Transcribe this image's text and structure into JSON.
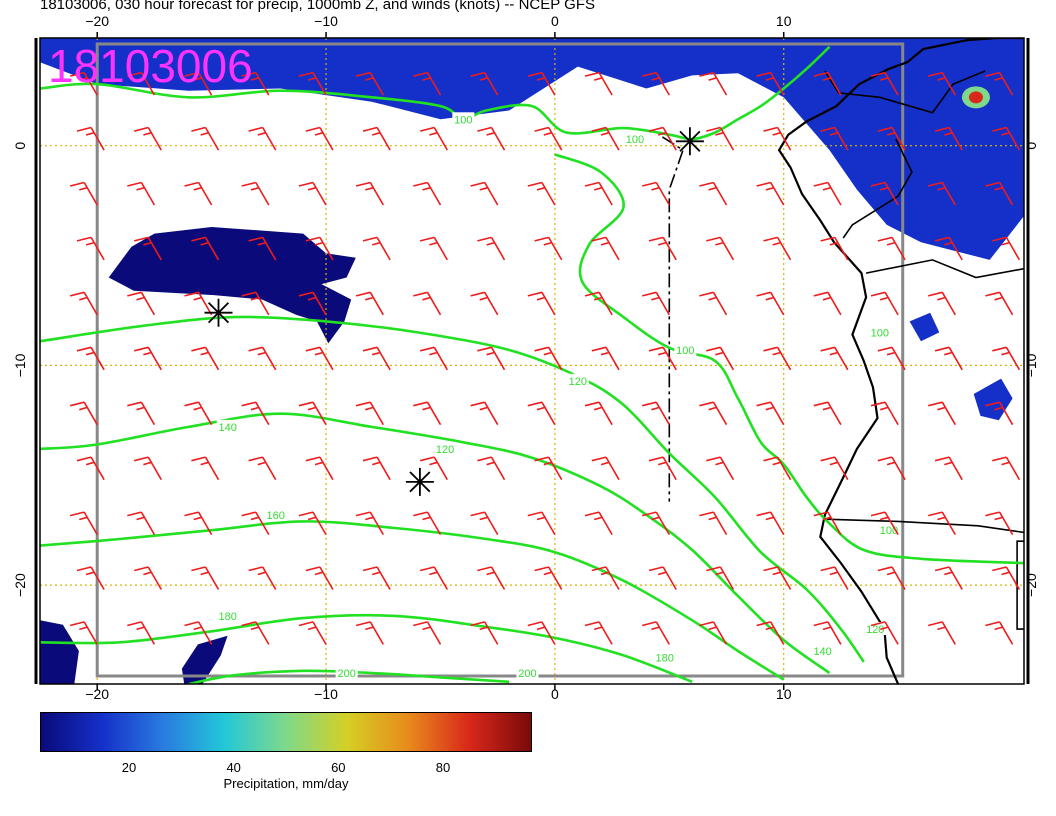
{
  "title": "18103006, 030 hour forecast for precip, 1000mb Z, and winds (knots) -- NCEP GFS",
  "stamp": "18103006",
  "map": {
    "lon_range": [
      -22.5,
      20.5
    ],
    "lat_range": [
      -24.5,
      4.9
    ],
    "x_tick_labels_top": [
      {
        "lon": -20,
        "label": "−20"
      },
      {
        "lon": -10,
        "label": "−10"
      },
      {
        "lon": 0,
        "label": "0"
      },
      {
        "lon": 10,
        "label": "10"
      }
    ],
    "x_tick_labels_bottom": [
      {
        "lon": -20,
        "label": "−20"
      },
      {
        "lon": -10,
        "label": "−10"
      },
      {
        "lon": 0,
        "label": "0"
      },
      {
        "lon": 10,
        "label": "10"
      }
    ],
    "y_tick_labels": [
      {
        "lat": 0,
        "label": "0"
      },
      {
        "lat": -10,
        "label": "−10"
      },
      {
        "lat": -20,
        "label": "−20"
      }
    ],
    "contours": [
      {
        "value": 100,
        "label": "100",
        "points": [
          [
            -22.5,
            2.6
          ],
          [
            -20,
            2.8
          ],
          [
            -16,
            2.2
          ],
          [
            -12,
            2.5
          ],
          [
            -8,
            2.2
          ],
          [
            -5,
            1.8
          ],
          [
            -4,
            1.2
          ],
          [
            -3,
            1.6
          ],
          [
            -1,
            1.8
          ],
          [
            0.5,
            0.6
          ],
          [
            3,
            0.8
          ],
          [
            5,
            0.5
          ],
          [
            6,
            0.3
          ],
          [
            7,
            0.6
          ],
          [
            8,
            1.2
          ],
          [
            9,
            1.8
          ],
          [
            10,
            2.6
          ],
          [
            11,
            3.5
          ],
          [
            12,
            4.5
          ]
        ]
      },
      {
        "value": 100,
        "label": "100",
        "points": [
          [
            0,
            -0.4
          ],
          [
            2,
            -1.2
          ],
          [
            3,
            -2.8
          ],
          [
            1.5,
            -4.5
          ],
          [
            1.2,
            -6.2
          ],
          [
            3,
            -7.8
          ],
          [
            5,
            -9.2
          ],
          [
            7,
            -9.8
          ],
          [
            8,
            -11.5
          ],
          [
            9,
            -13.5
          ],
          [
            10,
            -14.5
          ],
          [
            11,
            -16
          ],
          [
            12,
            -17.2
          ],
          [
            13.5,
            -18.4
          ],
          [
            16,
            -18.8
          ],
          [
            20.5,
            -19
          ]
        ]
      },
      {
        "value": 120,
        "label": "120",
        "points": [
          [
            -22.5,
            -8.9
          ],
          [
            -18,
            -8.2
          ],
          [
            -14,
            -7.8
          ],
          [
            -10,
            -8.0
          ],
          [
            -6,
            -8.5
          ],
          [
            -2,
            -9.3
          ],
          [
            1,
            -10.5
          ],
          [
            3,
            -11.8
          ],
          [
            5,
            -14
          ],
          [
            7,
            -16
          ],
          [
            9,
            -18.5
          ],
          [
            11,
            -20.2
          ],
          [
            12.5,
            -22
          ],
          [
            13.5,
            -23.5
          ]
        ]
      },
      {
        "value": 140,
        "label": "140",
        "points": [
          [
            -22.5,
            -13.8
          ],
          [
            -20,
            -13.6
          ],
          [
            -16,
            -12.8
          ],
          [
            -12,
            -12.2
          ],
          [
            -8,
            -12.8
          ],
          [
            -4,
            -13.5
          ],
          [
            -1,
            -14.2
          ],
          [
            2,
            -15.5
          ],
          [
            4,
            -16.8
          ],
          [
            6,
            -18.4
          ],
          [
            8,
            -20.5
          ],
          [
            10,
            -22.5
          ],
          [
            12,
            -24
          ]
        ]
      },
      {
        "value": 160,
        "label": "160",
        "points": [
          [
            -22.5,
            -18.2
          ],
          [
            -19,
            -17.9
          ],
          [
            -15,
            -17.5
          ],
          [
            -11,
            -17.1
          ],
          [
            -7,
            -17.4
          ],
          [
            -3,
            -17.9
          ],
          [
            0,
            -18.5
          ],
          [
            3,
            -19.8
          ],
          [
            6,
            -21.6
          ],
          [
            8,
            -23
          ],
          [
            10,
            -24.3
          ]
        ]
      },
      {
        "value": 180,
        "label": "180",
        "points": [
          [
            -22.5,
            -22.6
          ],
          [
            -19,
            -22.6
          ],
          [
            -15,
            -22.1
          ],
          [
            -11,
            -21.5
          ],
          [
            -7,
            -21.4
          ],
          [
            -3,
            -21.9
          ],
          [
            0,
            -22.4
          ],
          [
            3,
            -23.2
          ],
          [
            6,
            -24.4
          ]
        ]
      },
      {
        "value": 200,
        "label": "200",
        "points": [
          [
            -16,
            -24.5
          ],
          [
            -14,
            -24.1
          ],
          [
            -11,
            -23.9
          ],
          [
            -8,
            -24.0
          ],
          [
            -5,
            -24.2
          ],
          [
            -2,
            -24.4
          ]
        ]
      }
    ],
    "contour_label_positions": [
      {
        "label": "100",
        "lon": -4.0,
        "lat": 1.2
      },
      {
        "label": "100",
        "lon": 3.5,
        "lat": 0.3
      },
      {
        "label": "100",
        "lon": 5.7,
        "lat": -9.3
      },
      {
        "label": "120",
        "lon": 1.0,
        "lat": -10.7
      },
      {
        "label": "120",
        "lon": -4.8,
        "lat": -13.8
      },
      {
        "label": "140",
        "lon": -14.3,
        "lat": -12.8
      },
      {
        "label": "160",
        "lon": -12.2,
        "lat": -16.8
      },
      {
        "label": "180",
        "lon": -14.3,
        "lat": -21.4
      },
      {
        "label": "180",
        "lon": 4.8,
        "lat": -23.3
      },
      {
        "label": "200",
        "lon": -9.1,
        "lat": -24.0
      },
      {
        "label": "200",
        "lon": -1.2,
        "lat": -24.0
      },
      {
        "label": "140",
        "lon": 11.7,
        "lat": -23.0
      },
      {
        "label": "120",
        "lon": 14.0,
        "lat": -22.0
      },
      {
        "label": "100",
        "lon": 14.6,
        "lat": -17.5
      },
      {
        "label": "100",
        "lon": 14.2,
        "lat": -8.5
      }
    ],
    "low_markers": [
      [
        5.9,
        0.2
      ],
      [
        -14.7,
        -7.6
      ],
      [
        -5.9,
        -15.3
      ]
    ],
    "precip_areas": [
      {
        "name": "itcz-band",
        "level": 12,
        "points": [
          [
            -22.5,
            3.8
          ],
          [
            -22.5,
            4.9
          ],
          [
            20.5,
            4.9
          ],
          [
            20.5,
            -3.2
          ],
          [
            19,
            -5.2
          ],
          [
            16,
            -4.4
          ],
          [
            14.5,
            -3.6
          ],
          [
            13.2,
            -2
          ],
          [
            12,
            -0.2
          ],
          [
            10,
            2.2
          ],
          [
            8,
            3.3
          ],
          [
            6,
            3.2
          ],
          [
            4,
            2.6
          ],
          [
            1,
            3.6
          ],
          [
            -2,
            1.6
          ],
          [
            -5,
            1.2
          ],
          [
            -8,
            2.0
          ],
          [
            -12,
            2.6
          ],
          [
            -16,
            2.5
          ],
          [
            -20,
            2.8
          ]
        ]
      },
      {
        "name": "ocean-patch",
        "level": 8,
        "points": [
          [
            -19.5,
            -6.0
          ],
          [
            -18.5,
            -4.6
          ],
          [
            -17.5,
            -4.0
          ],
          [
            -15,
            -3.7
          ],
          [
            -11,
            -4.0
          ],
          [
            -10,
            -4.9
          ],
          [
            -8.7,
            -5.1
          ],
          [
            -9.1,
            -6.0
          ],
          [
            -10.2,
            -6.3
          ],
          [
            -8.9,
            -7.0
          ],
          [
            -9.2,
            -8.0
          ],
          [
            -9.9,
            -9.0
          ],
          [
            -10.4,
            -8.0
          ],
          [
            -11.3,
            -7.7
          ],
          [
            -12.8,
            -7.0
          ],
          [
            -14.9,
            -6.8
          ],
          [
            -18.4,
            -6.6
          ]
        ]
      },
      {
        "name": "southwest-patch",
        "level": 8,
        "points": [
          [
            -22.5,
            -21.6
          ],
          [
            -21.5,
            -21.8
          ],
          [
            -20.8,
            -23.0
          ],
          [
            -21.0,
            -24.5
          ],
          [
            -22.5,
            -24.5
          ]
        ]
      },
      {
        "name": "lower-patch",
        "level": 8,
        "points": [
          [
            -16.3,
            -23.8
          ],
          [
            -15.6,
            -22.7
          ],
          [
            -14.3,
            -22.3
          ],
          [
            -14.6,
            -23.2
          ],
          [
            -15.4,
            -24.5
          ],
          [
            -16.2,
            -24.5
          ]
        ]
      },
      {
        "name": "coastal-patch",
        "level": 10,
        "points": [
          [
            15.5,
            -8.0
          ],
          [
            16.4,
            -7.6
          ],
          [
            16.8,
            -8.5
          ],
          [
            16.0,
            -8.9
          ]
        ]
      },
      {
        "name": "inland-patch",
        "level": 10,
        "points": [
          [
            18.3,
            -11.3
          ],
          [
            19.5,
            -10.6
          ],
          [
            20.0,
            -11.5
          ],
          [
            19.4,
            -12.5
          ],
          [
            18.6,
            -12.3
          ]
        ]
      }
    ],
    "precip_max": {
      "lon": 18.4,
      "lat": 2.2,
      "level": 80
    },
    "coastline": [
      [
        20.5,
        4.9
      ],
      [
        19.3,
        4.9
      ],
      [
        18,
        4.8
      ],
      [
        16.1,
        4.4
      ],
      [
        15.4,
        3.8
      ],
      [
        14.6,
        3.5
      ],
      [
        13.3,
        2.8
      ],
      [
        12.3,
        1.8
      ],
      [
        11.0,
        1.1
      ],
      [
        10.2,
        0.5
      ],
      [
        9.8,
        -0.2
      ],
      [
        10.3,
        -1.0
      ],
      [
        10.8,
        -2.2
      ],
      [
        11.6,
        -3.4
      ],
      [
        12.2,
        -4.4
      ],
      [
        13.4,
        -5.8
      ],
      [
        13.6,
        -6.9
      ],
      [
        13.0,
        -8.6
      ],
      [
        13.5,
        -9.8
      ],
      [
        13.9,
        -11.0
      ],
      [
        14.1,
        -12.4
      ],
      [
        13.2,
        -13.8
      ],
      [
        12.6,
        -15.1
      ],
      [
        11.8,
        -16.8
      ],
      [
        11.6,
        -17.8
      ],
      [
        12.5,
        -19.0
      ],
      [
        13.4,
        -20.3
      ],
      [
        14.4,
        -22.0
      ],
      [
        14.5,
        -23.3
      ],
      [
        15.0,
        -24.5
      ]
    ],
    "borders": [
      [
        [
          11.8,
          3.4
        ],
        [
          12.4,
          2.4
        ],
        [
          14.2,
          2.2
        ],
        [
          16.5,
          1.5
        ],
        [
          17.4,
          2.8
        ],
        [
          18.8,
          3.4
        ]
      ],
      [
        [
          12.6,
          -4.2
        ],
        [
          13.0,
          -3.6
        ],
        [
          15.0,
          -2.3
        ],
        [
          15.6,
          -1.2
        ],
        [
          14.9,
          0.3
        ]
      ],
      [
        [
          13.6,
          -5.8
        ],
        [
          16.5,
          -5.2
        ],
        [
          18.4,
          -6.0
        ],
        [
          20.5,
          -5.6
        ]
      ],
      [
        [
          11.8,
          -17.0
        ],
        [
          15.0,
          -17.1
        ],
        [
          18.5,
          -17.3
        ],
        [
          20.5,
          -17.6
        ]
      ],
      [
        [
          20.5,
          -18.0
        ],
        [
          20.2,
          -18.0
        ],
        [
          20.2,
          -22.0
        ],
        [
          20.5,
          -22.0
        ]
      ]
    ],
    "dateline_segment": [
      [
        4.7,
        0.4
      ],
      [
        5.6,
        -0.2
      ],
      [
        5.0,
        -2.0
      ],
      [
        5.0,
        -10
      ],
      [
        5.0,
        -16.2
      ]
    ],
    "wind_barbs": {
      "lon_start": -20,
      "lon_step": 2.5,
      "lat_start": 2.3,
      "lat_step": -2.5,
      "cols": 18,
      "rows": 12,
      "dir_deg": 150,
      "speed_kt": 15
    }
  },
  "colorbar": {
    "ticks": [
      {
        "value": 20,
        "label": "20"
      },
      {
        "value": 40,
        "label": "40"
      },
      {
        "value": 60,
        "label": "60"
      },
      {
        "value": 80,
        "label": "80"
      }
    ],
    "range": [
      3,
      97
    ],
    "colors": [
      "#0a0a7a",
      "#1530c8",
      "#2a7be0",
      "#22c8d8",
      "#7fd98a",
      "#d4d024",
      "#e88a1c",
      "#d8281a",
      "#7a0a0a"
    ],
    "title": "Precipitation, mm/day"
  }
}
